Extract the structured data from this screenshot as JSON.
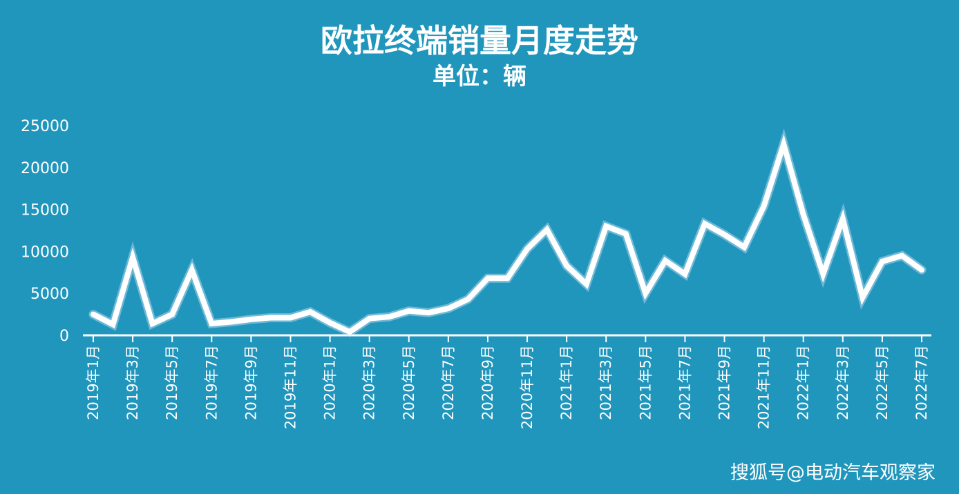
{
  "watermark": "搜狐号@电动汽车观察家",
  "chart_data": {
    "type": "line",
    "title": "欧拉终端销量月度走势",
    "subtitle": "单位：辆",
    "ylim": [
      0,
      25000
    ],
    "yticks": [
      0,
      5000,
      10000,
      15000,
      20000,
      25000
    ],
    "grid": false,
    "line_color": "#ffffff",
    "x": [
      "2019年1月",
      "2019年2月",
      "2019年3月",
      "2019年4月",
      "2019年5月",
      "2019年6月",
      "2019年7月",
      "2019年8月",
      "2019年9月",
      "2019年10月",
      "2019年11月",
      "2019年12月",
      "2020年1月",
      "2020年2月",
      "2020年3月",
      "2020年4月",
      "2020年5月",
      "2020年6月",
      "2020年7月",
      "2020年8月",
      "2020年9月",
      "2020年10月",
      "2020年11月",
      "2020年12月",
      "2021年1月",
      "2021年2月",
      "2021年3月",
      "2021年4月",
      "2021年5月",
      "2021年6月",
      "2021年7月",
      "2021年8月",
      "2021年9月",
      "2021年10月",
      "2021年11月",
      "2021年12月",
      "2022年1月",
      "2022年2月",
      "2022年3月",
      "2022年4月",
      "2022年5月",
      "2022年6月",
      "2022年7月"
    ],
    "x_tick_labels": [
      "2019年1月",
      "2019年3月",
      "2019年5月",
      "2019年7月",
      "2019年9月",
      "2019年11月",
      "2020年1月",
      "2020年3月",
      "2020年5月",
      "2020年7月",
      "2020年9月",
      "2020年11月",
      "2021年1月",
      "2021年3月",
      "2021年5月",
      "2021年7月",
      "2021年9月",
      "2021年11月",
      "2022年1月",
      "2022年3月",
      "2022年5月",
      "2022年7月"
    ],
    "values": [
      2500,
      1300,
      9300,
      1400,
      2500,
      7800,
      1400,
      1600,
      1900,
      2100,
      2100,
      2800,
      1500,
      400,
      2000,
      2200,
      2900,
      2700,
      3200,
      4300,
      6800,
      6800,
      10300,
      12600,
      8300,
      6100,
      13000,
      12100,
      5000,
      8900,
      7300,
      13300,
      12000,
      10500,
      15400,
      22800,
      14400,
      7300,
      13900,
      4500,
      8800,
      9500,
      7800
    ]
  }
}
